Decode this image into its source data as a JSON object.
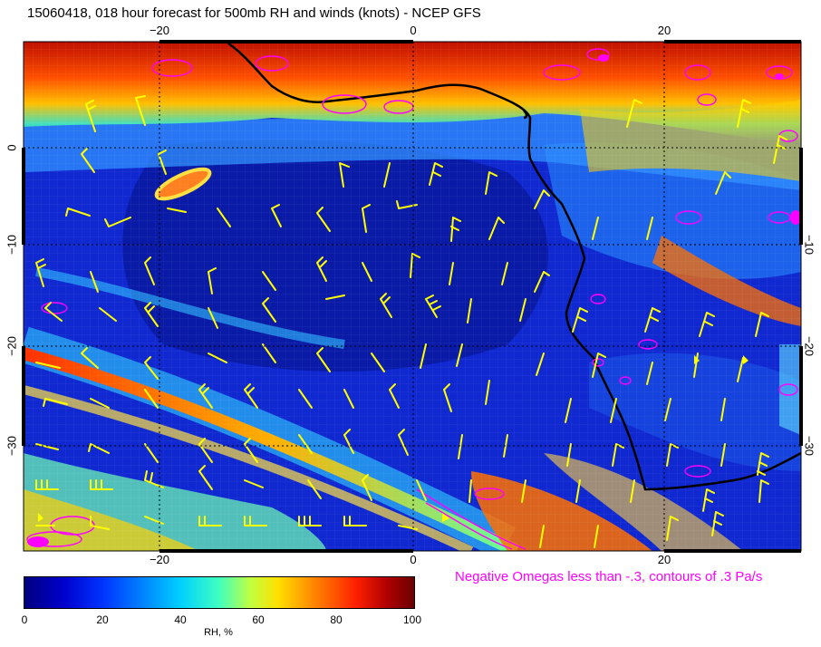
{
  "title": "15060418, 018 hour forecast for 500mb RH and winds (knots) - NCEP GFS",
  "map": {
    "top_lon_labels": [
      "−20",
      "0",
      "20"
    ],
    "bottom_lon_labels": [
      "−20",
      "0",
      "20"
    ],
    "left_lat_labels": [
      "0",
      "−10",
      "−20",
      "−30"
    ],
    "right_lat_labels": [
      "−10",
      "−20",
      "−30"
    ]
  },
  "note": "Negative Omegas less than -.3, contours of .3 Pa/s",
  "colorbar": {
    "ticks": [
      "0",
      "20",
      "40",
      "60",
      "80",
      "100"
    ],
    "label": "RH, %"
  },
  "colors": {
    "omega_contours": "#ff00ff",
    "wind_barbs": "#ffff00",
    "coastline": "#000000"
  }
}
